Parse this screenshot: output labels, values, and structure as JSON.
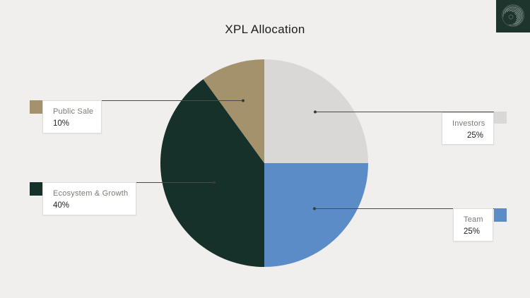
{
  "title": "XPL Allocation",
  "page": {
    "background_color": "#f0efee",
    "leader_line_color": "#4a4a48"
  },
  "logo": {
    "name": "plasma-swirl-logo",
    "background_color": "#1d352d"
  },
  "chart_data": {
    "type": "pie",
    "title": "XPL Allocation",
    "direction": "clockwise",
    "start_angle_deg": 0,
    "unit": "%",
    "segments": [
      {
        "label": "Investors",
        "value": 25,
        "pct_label": "25%",
        "color": "#d9d8d6",
        "label_side": "right"
      },
      {
        "label": "Team",
        "value": 25,
        "pct_label": "25%",
        "color": "#5b8cc8",
        "label_side": "right"
      },
      {
        "label": "Ecosystem & Growth",
        "value": 40,
        "pct_label": "40%",
        "color": "#16302a",
        "label_side": "left"
      },
      {
        "label": "Public Sale",
        "value": 10,
        "pct_label": "10%",
        "color": "#a3926c",
        "label_side": "left"
      }
    ]
  }
}
